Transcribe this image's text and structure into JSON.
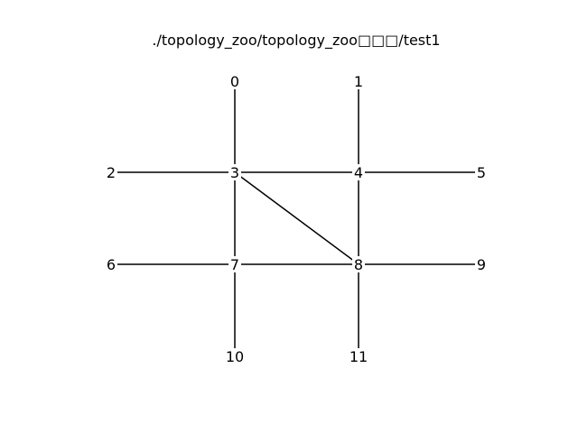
{
  "figure": {
    "title": "./topology_zoo/topology_zoo□□□/test1"
  },
  "graph": {
    "nodes": [
      {
        "id": "0",
        "label": "0"
      },
      {
        "id": "1",
        "label": "1"
      },
      {
        "id": "2",
        "label": "2"
      },
      {
        "id": "3",
        "label": "3"
      },
      {
        "id": "4",
        "label": "4"
      },
      {
        "id": "5",
        "label": "5"
      },
      {
        "id": "6",
        "label": "6"
      },
      {
        "id": "7",
        "label": "7"
      },
      {
        "id": "8",
        "label": "8"
      },
      {
        "id": "9",
        "label": "9"
      },
      {
        "id": "10",
        "label": "10"
      },
      {
        "id": "11",
        "label": "11"
      }
    ],
    "edges": [
      [
        "0",
        "3"
      ],
      [
        "1",
        "4"
      ],
      [
        "2",
        "3"
      ],
      [
        "3",
        "4"
      ],
      [
        "4",
        "5"
      ],
      [
        "3",
        "7"
      ],
      [
        "3",
        "8"
      ],
      [
        "4",
        "8"
      ],
      [
        "6",
        "7"
      ],
      [
        "7",
        "8"
      ],
      [
        "8",
        "9"
      ],
      [
        "7",
        "10"
      ],
      [
        "8",
        "11"
      ]
    ]
  }
}
